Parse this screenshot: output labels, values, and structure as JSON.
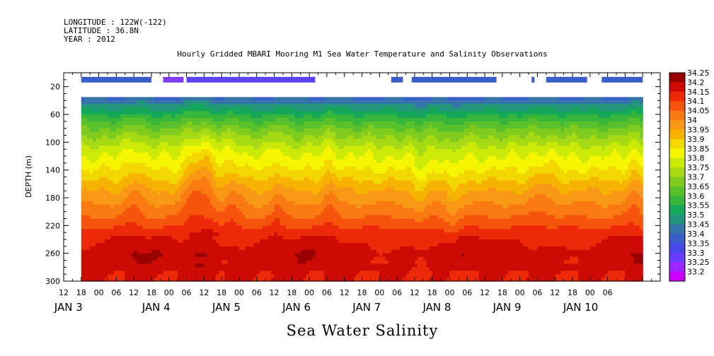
{
  "header": {
    "longitude": "LONGITUDE : 122W(-122)",
    "latitude": "LATITUDE : 36.8N",
    "year": "YEAR : 2012",
    "title": "Hourly Gridded MBARI Mooring M1 Sea Water Temperature and Salinity Observations"
  },
  "chart_data": {
    "type": "heatmap",
    "title": "Hourly Gridded MBARI Mooring M1 Sea Water Temperature and Salinity Observations",
    "xlabel": "Sea Water Salinity",
    "ylabel": "DEPTH (m)",
    "x_start_hour": -6,
    "x_end_hour": 186,
    "xlim_hours_from_jan3_00": [
      -12,
      192
    ],
    "ylim": [
      300,
      0
    ],
    "y_ticks": [
      20,
      60,
      100,
      140,
      180,
      220,
      260,
      300
    ],
    "x_hour_ticks": [
      {
        "h": -12,
        "label": "12"
      },
      {
        "h": -6,
        "label": "18"
      },
      {
        "h": 0,
        "label": "00"
      },
      {
        "h": 6,
        "label": "06"
      },
      {
        "h": 12,
        "label": "12"
      },
      {
        "h": 18,
        "label": "18"
      },
      {
        "h": 24,
        "label": "00"
      },
      {
        "h": 30,
        "label": "06"
      },
      {
        "h": 36,
        "label": "12"
      },
      {
        "h": 42,
        "label": "18"
      },
      {
        "h": 48,
        "label": "00"
      },
      {
        "h": 54,
        "label": "06"
      },
      {
        "h": 60,
        "label": "12"
      },
      {
        "h": 66,
        "label": "18"
      },
      {
        "h": 72,
        "label": "00"
      },
      {
        "h": 78,
        "label": "06"
      },
      {
        "h": 84,
        "label": "12"
      },
      {
        "h": 90,
        "label": "18"
      },
      {
        "h": 96,
        "label": "00"
      },
      {
        "h": 102,
        "label": "06"
      },
      {
        "h": 108,
        "label": "12"
      },
      {
        "h": 114,
        "label": "18"
      },
      {
        "h": 120,
        "label": "00"
      },
      {
        "h": 126,
        "label": "06"
      },
      {
        "h": 132,
        "label": "12"
      },
      {
        "h": 138,
        "label": "18"
      },
      {
        "h": 144,
        "label": "00"
      },
      {
        "h": 150,
        "label": "06"
      },
      {
        "h": 156,
        "label": "12"
      },
      {
        "h": 162,
        "label": "18"
      },
      {
        "h": 168,
        "label": "00"
      },
      {
        "h": 174,
        "label": "06"
      }
    ],
    "x_day_labels": [
      {
        "h": -6,
        "label": "JAN  3"
      },
      {
        "h": 24,
        "label": "JAN  4"
      },
      {
        "h": 48,
        "label": "JAN  5"
      },
      {
        "h": 72,
        "label": "JAN  6"
      },
      {
        "h": 96,
        "label": "JAN  7"
      },
      {
        "h": 120,
        "label": "JAN  8"
      },
      {
        "h": 144,
        "label": "JAN  9"
      },
      {
        "h": 168,
        "label": "JAN 10"
      }
    ],
    "levels": [
      33.2,
      33.25,
      33.3,
      33.35,
      33.4,
      33.45,
      33.5,
      33.55,
      33.6,
      33.65,
      33.7,
      33.75,
      33.8,
      33.85,
      33.9,
      33.95,
      34,
      34.05,
      34.1,
      34.15,
      34.2,
      34.25
    ],
    "level_labels": [
      "34.25",
      "34.2",
      "34.15",
      "34.1",
      "34.05",
      "34",
      "33.95",
      "33.9",
      "33.85",
      "33.8",
      "33.75",
      "33.7",
      "33.65",
      "33.6",
      "33.55",
      "33.5",
      "33.45",
      "33.4",
      "33.35",
      "33.3",
      "33.25",
      "33.2"
    ],
    "level_colors": [
      "#cc00ff",
      "#9d28ff",
      "#6a3cff",
      "#4848e8",
      "#3a5ec8",
      "#3474a8",
      "#22967a",
      "#16a85a",
      "#36b63a",
      "#58c02a",
      "#80cc1e",
      "#a6da14",
      "#ccea08",
      "#f6f600",
      "#f2d800",
      "#f6b400",
      "#f89814",
      "#fa7a12",
      "#f6540c",
      "#ec2a08",
      "#cc0c04",
      "#990000"
    ],
    "surface_bar": {
      "depth": 10,
      "color_blue": "#3a5ec8",
      "color_purple": "#7f3cf6",
      "segments": [
        {
          "start": -6,
          "end": 18,
          "v": 33.38
        },
        {
          "start": 22,
          "end": 29,
          "v": 33.28
        },
        {
          "start": 30,
          "end": 74,
          "v": 33.33
        },
        {
          "start": 100,
          "end": 104,
          "v": 33.36
        },
        {
          "start": 107,
          "end": 136,
          "v": 33.36
        },
        {
          "start": 148,
          "end": 149,
          "v": 33.36
        },
        {
          "start": 153,
          "end": 167,
          "v": 33.37
        },
        {
          "start": 172,
          "end": 186,
          "v": 33.38
        }
      ]
    },
    "field": {
      "top_depth": 35,
      "bottom_depth": 300,
      "description_of_values": "salinity as a function of hour and depth",
      "profile_depths": [
        35,
        45,
        55,
        65,
        80,
        95,
        110,
        125,
        140,
        155,
        170,
        185,
        200,
        215,
        230,
        245,
        260,
        275,
        290,
        300
      ],
      "profile_values": [
        33.43,
        33.5,
        33.56,
        33.62,
        33.7,
        33.76,
        33.82,
        33.86,
        33.9,
        33.95,
        34.0,
        34.04,
        34.08,
        34.12,
        34.17,
        34.2,
        34.23,
        34.22,
        34.2,
        34.2
      ],
      "upwelling_events": [
        {
          "h": 12,
          "amp": 0.05,
          "w": 3
        },
        {
          "h": 33,
          "amp": 0.09,
          "w": 4
        },
        {
          "h": 38,
          "amp": 0.06,
          "w": 3
        },
        {
          "h": 46,
          "amp": 0.05,
          "w": 3
        },
        {
          "h": 61,
          "amp": 0.05,
          "w": 2
        },
        {
          "h": 79,
          "amp": 0.04,
          "w": 3
        },
        {
          "h": 110,
          "amp": -0.04,
          "w": 3
        },
        {
          "h": 121,
          "amp": -0.05,
          "w": 2
        },
        {
          "h": 152,
          "amp": 0.03,
          "w": 4
        },
        {
          "h": 183,
          "amp": 0.04,
          "w": 3
        }
      ]
    }
  }
}
